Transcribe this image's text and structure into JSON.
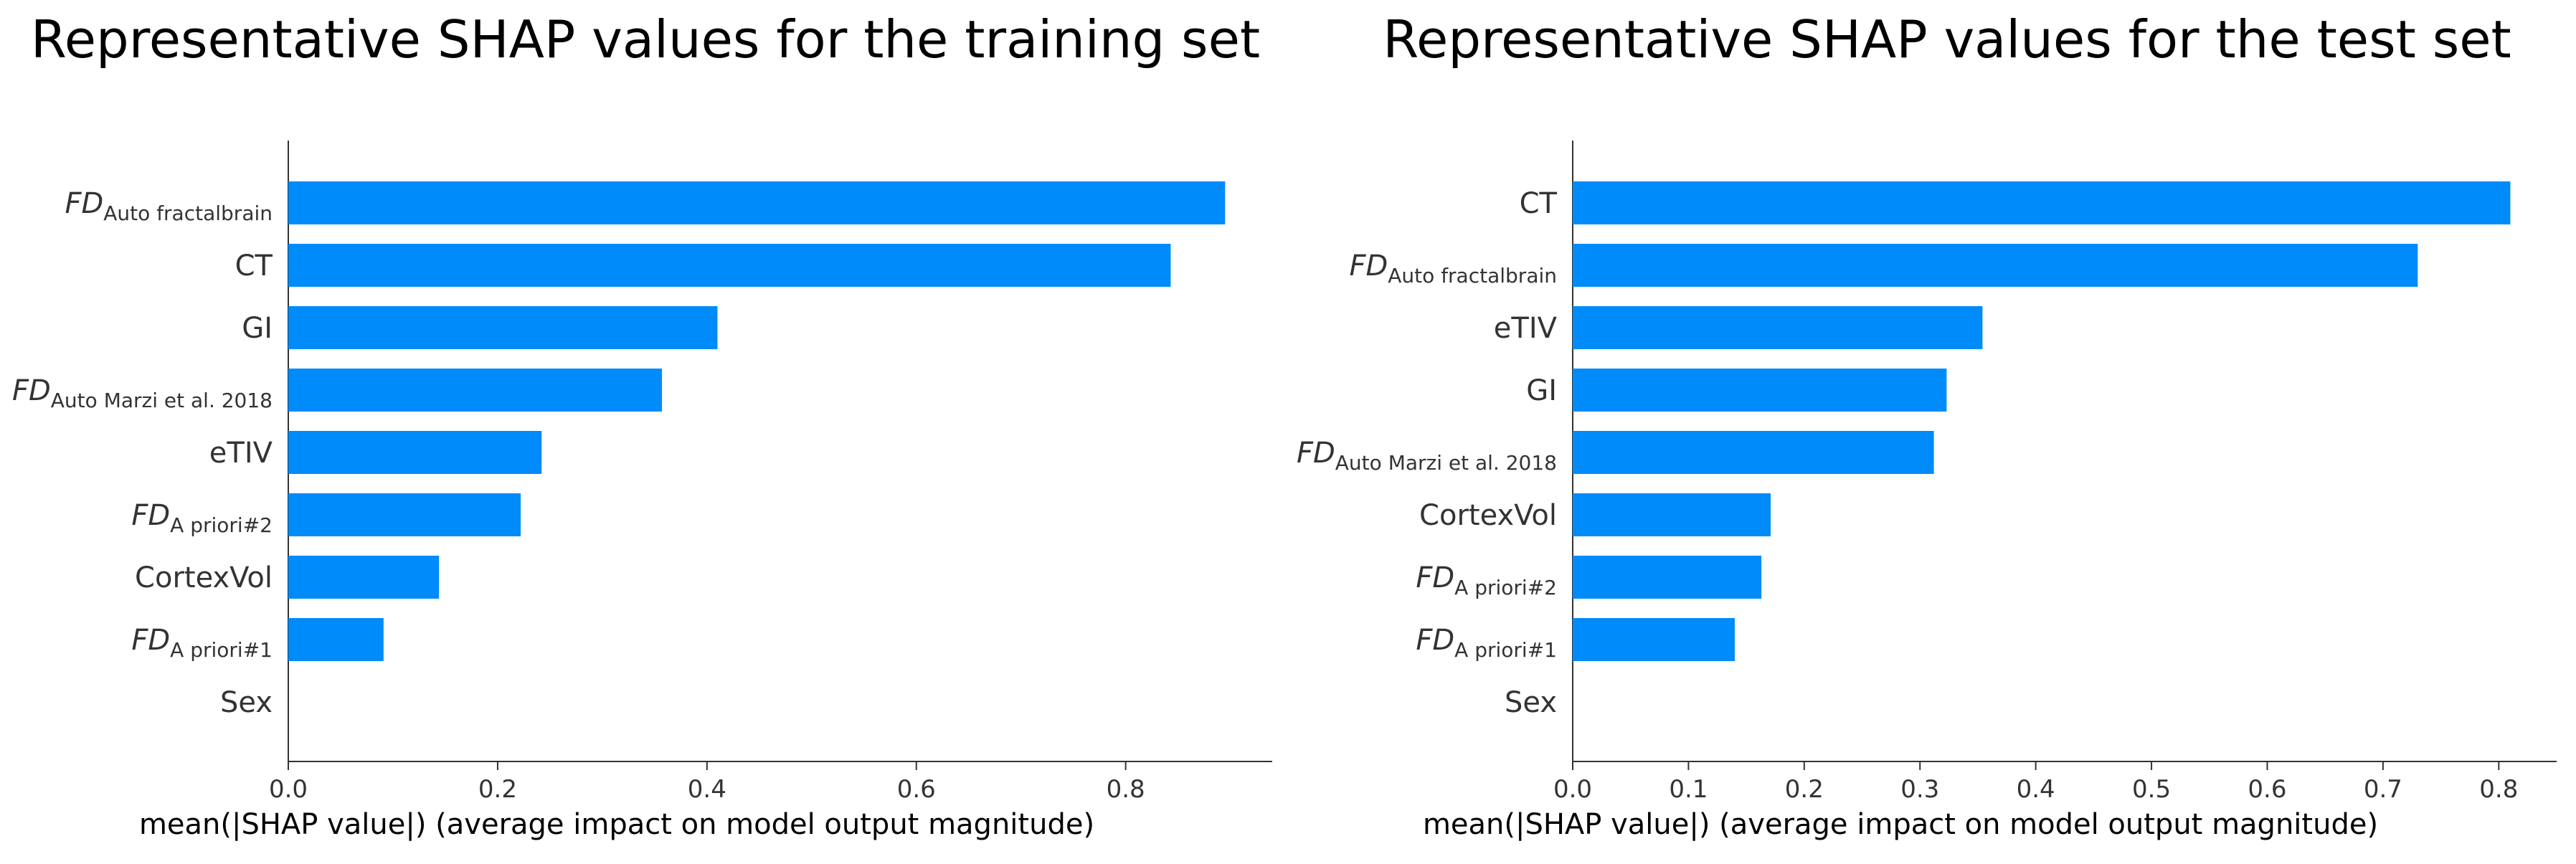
{
  "colors": {
    "bar": "#008BFB",
    "axis": "#333333",
    "text": "#333333"
  },
  "chart_data": [
    {
      "type": "bar",
      "orientation": "horizontal",
      "title": "Representative SHAP values for the training set",
      "xlabel": "mean(|SHAP value|) (average impact on model output magnitude)",
      "xlim": [
        0,
        0.94
      ],
      "xticks": [
        "0.0",
        "0.2",
        "0.4",
        "0.6",
        "0.8"
      ],
      "xtick_values": [
        0,
        0.2,
        0.4,
        0.6,
        0.8
      ],
      "categories": [
        {
          "base": "FD",
          "sub": "Auto fractalbrain",
          "label": "FD_Auto fractalbrain"
        },
        {
          "base": "CT",
          "sub": "",
          "label": "CT"
        },
        {
          "base": "GI",
          "sub": "",
          "label": "GI"
        },
        {
          "base": "FD",
          "sub": "Auto Marzi et al. 2018",
          "label": "FD_Auto Marzi et al. 2018"
        },
        {
          "base": "eTIV",
          "sub": "",
          "label": "eTIV"
        },
        {
          "base": "FD",
          "sub": "A priori#2",
          "label": "FD_A priori#2"
        },
        {
          "base": "CortexVol",
          "sub": "",
          "label": "CortexVol"
        },
        {
          "base": "FD",
          "sub": "A priori#1",
          "label": "FD_A priori#1"
        },
        {
          "base": "Sex",
          "sub": "",
          "label": "Sex"
        }
      ],
      "values": [
        0.895,
        0.843,
        0.41,
        0.357,
        0.242,
        0.222,
        0.144,
        0.091,
        0.0
      ]
    },
    {
      "type": "bar",
      "orientation": "horizontal",
      "title": "Representative SHAP values for the test set",
      "xlabel": "mean(|SHAP value|) (average impact on model output magnitude)",
      "xlim": [
        0,
        0.85
      ],
      "xticks": [
        "0.0",
        "0.1",
        "0.2",
        "0.3",
        "0.4",
        "0.5",
        "0.6",
        "0.7",
        "0.8"
      ],
      "xtick_values": [
        0,
        0.1,
        0.2,
        0.3,
        0.4,
        0.5,
        0.6,
        0.7,
        0.8
      ],
      "categories": [
        {
          "base": "CT",
          "sub": "",
          "label": "CT"
        },
        {
          "base": "FD",
          "sub": "Auto fractalbrain",
          "label": "FD_Auto fractalbrain"
        },
        {
          "base": "eTIV",
          "sub": "",
          "label": "eTIV"
        },
        {
          "base": "GI",
          "sub": "",
          "label": "GI"
        },
        {
          "base": "FD",
          "sub": "Auto Marzi et al. 2018",
          "label": "FD_Auto Marzi et al. 2018"
        },
        {
          "base": "CortexVol",
          "sub": "",
          "label": "CortexVol"
        },
        {
          "base": "FD",
          "sub": "A priori#2",
          "label": "FD_A priori#2"
        },
        {
          "base": "FD",
          "sub": "A priori#1",
          "label": "FD_A priori#1"
        },
        {
          "base": "Sex",
          "sub": "",
          "label": "Sex"
        }
      ],
      "values": [
        0.81,
        0.73,
        0.354,
        0.323,
        0.312,
        0.171,
        0.163,
        0.14,
        0.0
      ]
    }
  ]
}
